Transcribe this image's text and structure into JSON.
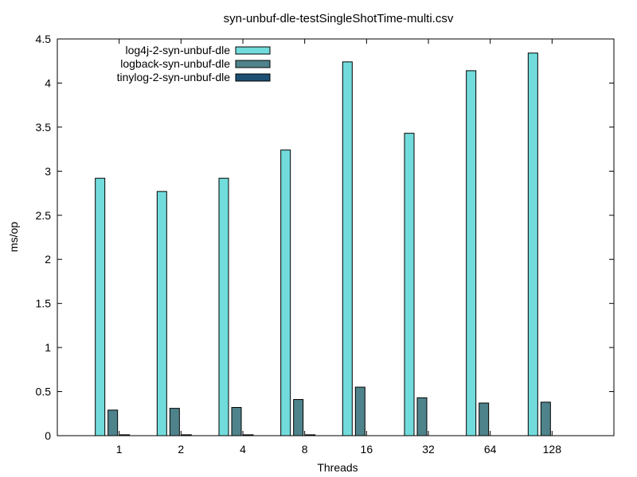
{
  "chart_data": {
    "type": "bar",
    "title": "syn-unbuf-dle-testSingleShotTime-multi.csv",
    "xlabel": "Threads",
    "ylabel": "ms/op",
    "categories": [
      "1",
      "2",
      "4",
      "8",
      "16",
      "32",
      "64",
      "128"
    ],
    "ylim": [
      0,
      4.5
    ],
    "yticks": [
      "0",
      "0.5",
      "1",
      "1.5",
      "2",
      "2.5",
      "3",
      "3.5",
      "4",
      "4.5"
    ],
    "grid": false,
    "legend_position": "top-left",
    "series": [
      {
        "name": "log4j-2-syn-unbuf-dle",
        "color": "#72dbdb",
        "values": [
          2.92,
          2.77,
          2.92,
          3.24,
          4.24,
          3.43,
          4.14,
          4.34
        ]
      },
      {
        "name": "logback-syn-unbuf-dle",
        "color": "#4f838b",
        "values": [
          0.29,
          0.31,
          0.32,
          0.41,
          0.55,
          0.43,
          0.37,
          0.38
        ]
      },
      {
        "name": "tinylog-2-syn-unbuf-dle",
        "color": "#1e4f73",
        "values": [
          0.01,
          0.01,
          0.01,
          0.01,
          0.0,
          0.0,
          0.0,
          0.0
        ]
      }
    ]
  }
}
